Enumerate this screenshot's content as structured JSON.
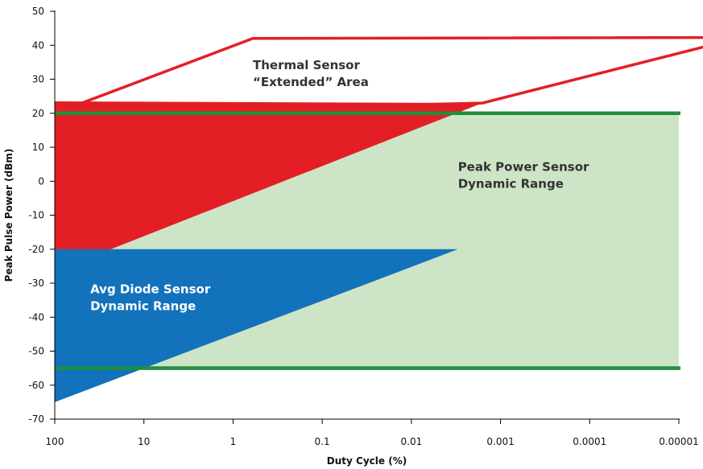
{
  "chart_data": {
    "type": "area",
    "xlabel": "Duty Cycle (%)",
    "ylabel": "Peak Pulse Power (dBm)",
    "x_scale": "log-reversed",
    "xlim": [
      100,
      1e-05
    ],
    "ylim": [
      -70,
      50
    ],
    "x_ticks": [
      {
        "value": 100,
        "label": "100"
      },
      {
        "value": 10,
        "label": "10"
      },
      {
        "value": 1,
        "label": "1"
      },
      {
        "value": 0.1,
        "label": "0.1"
      },
      {
        "value": 0.01,
        "label": "0.01"
      },
      {
        "value": 0.001,
        "label": "0.001"
      },
      {
        "value": 0.0001,
        "label": "0.0001"
      },
      {
        "value": 1e-05,
        "label": "0.00001"
      }
    ],
    "y_ticks": [
      50,
      40,
      30,
      20,
      10,
      0,
      -10,
      -20,
      -30,
      -40,
      -50,
      -60,
      -70
    ],
    "regions": [
      {
        "id": "peak",
        "label_lines": [
          "Peak Power Sensor",
          "Dynamic Range"
        ],
        "fill": "#cde5c6",
        "label_color": "#333333",
        "label_at": {
          "x": 0.003,
          "y": 3
        },
        "points": [
          {
            "x": 100,
            "y": 20
          },
          {
            "x": 1e-05,
            "y": 20
          },
          {
            "x": 1e-05,
            "y": -55
          },
          {
            "x": 100,
            "y": -55
          }
        ]
      },
      {
        "id": "thermal_extended",
        "label_lines": [
          "Thermal Sensor",
          "“Extended” Area"
        ],
        "fill": "none",
        "stroke": "#e41e25",
        "label_color": "#333333",
        "label_at": {
          "x": 0.6,
          "y": 33
        },
        "points": [
          {
            "x": 100,
            "y": 20
          },
          {
            "x": 0.6,
            "y": 42
          },
          {
            "x": 2e-06,
            "y": 42.3
          },
          {
            "x": 0.0016,
            "y": 23
          }
        ]
      },
      {
        "id": "thermal",
        "fill": "#e41e25",
        "points": [
          {
            "x": 100,
            "y": 20.5
          },
          {
            "x": 100,
            "y": 23.5
          },
          {
            "x": 0.0016,
            "y": 23
          },
          {
            "x": 100,
            "y": -26.5
          }
        ]
      },
      {
        "id": "avg_diode",
        "label_lines": [
          "Avg Diode Sensor",
          "Dynamic Range"
        ],
        "fill": "#1272bb",
        "label_color": "#ffffff",
        "label_at": {
          "x": 40,
          "y": -33
        },
        "points": [
          {
            "x": 100,
            "y": -20
          },
          {
            "x": 0.003,
            "y": -20
          },
          {
            "x": 100,
            "y": -65
          }
        ]
      }
    ],
    "reference_lines": [
      {
        "y": 20,
        "color": "#1d8f3d"
      },
      {
        "y": -55,
        "color": "#1d8f3d"
      }
    ]
  }
}
